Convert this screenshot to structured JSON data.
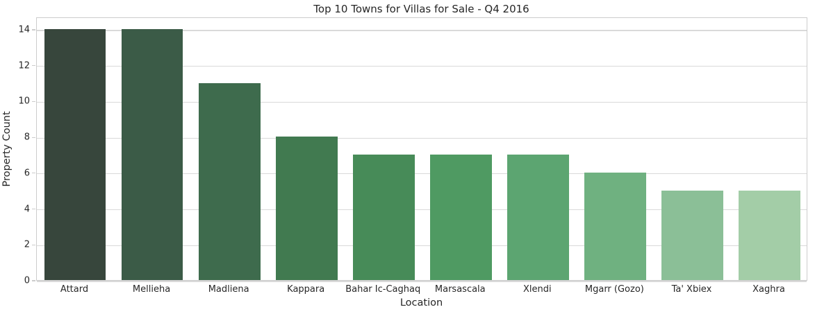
{
  "figure": {
    "background": "#ffffff",
    "text_color": "#262626",
    "grid_color": "#d9d9d9",
    "spine_color": "#cccccc"
  },
  "chart_data": {
    "type": "bar",
    "title": "Top 10 Towns for Villas for Sale - Q4 2016",
    "xlabel": "Location",
    "ylabel": "Property Count",
    "categories": [
      "Attard",
      "Mellieha",
      "Madliena",
      "Kappara",
      "Bahar Ic-Caghaq",
      "Marsascala",
      "Xlendi",
      "Mgarr (Gozo)",
      "Ta' Xbiex",
      "Xaghra"
    ],
    "values": [
      14,
      14,
      11,
      8,
      7,
      7,
      7,
      6,
      5,
      5
    ],
    "bar_colors": [
      "#37463c",
      "#3b5b47",
      "#3e6b4d",
      "#417a50",
      "#478b58",
      "#4f9a62",
      "#5ca571",
      "#6fb180",
      "#8bbf97",
      "#a3cda7"
    ],
    "yticks": [
      0,
      2,
      4,
      6,
      8,
      10,
      12,
      14
    ],
    "ylim": [
      0,
      14.7
    ],
    "grid": true,
    "bar_width_fraction": 0.8,
    "legend_position": "none"
  }
}
